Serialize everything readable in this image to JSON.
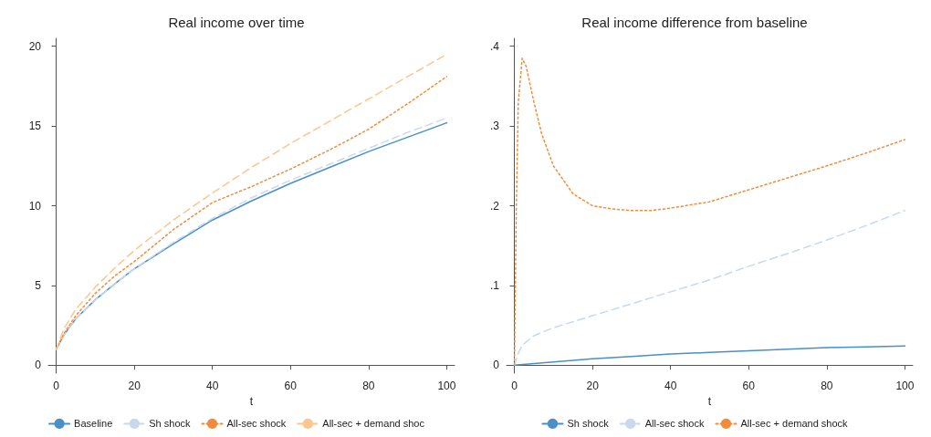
{
  "chart_data": [
    {
      "type": "line",
      "title": "Real income over time",
      "xlabel": "t",
      "xlim": [
        -2,
        102
      ],
      "xticks": [
        0,
        20,
        40,
        60,
        80,
        100
      ],
      "ylim": [
        -0.5,
        20.5
      ],
      "yticks": [
        0,
        5,
        10,
        15,
        20
      ],
      "grid": false,
      "legend": "bottom",
      "marker": "none",
      "series": [
        {
          "name": "Baseline",
          "color": "#4a8fc7",
          "line_style": "solid",
          "x": [
            0,
            2,
            5,
            10,
            15,
            20,
            30,
            40,
            50,
            60,
            70,
            80,
            90,
            100
          ],
          "values": [
            1,
            1.9,
            2.9,
            4.1,
            5.1,
            6.05,
            7.6,
            9.1,
            10.3,
            11.4,
            12.4,
            13.4,
            14.3,
            15.2
          ]
        },
        {
          "name": "Sh shock",
          "color": "#c6d9ef",
          "line_style": "dashed",
          "x": [
            0,
            2,
            5,
            10,
            15,
            20,
            30,
            40,
            50,
            60,
            70,
            80,
            90,
            100
          ],
          "values": [
            1,
            1.9,
            2.9,
            4.1,
            5.1,
            6.05,
            7.7,
            9.2,
            10.5,
            11.6,
            12.6,
            13.6,
            14.6,
            15.5
          ]
        },
        {
          "name": "All-sec shock",
          "color": "#f28c3c",
          "line_style": "dotted",
          "x": [
            0,
            2,
            5,
            10,
            15,
            20,
            30,
            40,
            50,
            60,
            70,
            80,
            90,
            100
          ],
          "values": [
            1,
            2,
            3.1,
            4.5,
            5.6,
            6.5,
            8.5,
            10.2,
            11.2,
            12.3,
            13.5,
            14.8,
            16.4,
            18.1
          ]
        },
        {
          "name": "All-sec + demand shoc",
          "color": "#fdc590",
          "line_style": "dashed",
          "x": [
            0,
            2,
            5,
            10,
            15,
            20,
            30,
            40,
            50,
            60,
            70,
            80,
            90,
            100
          ],
          "values": [
            1,
            2.3,
            3.5,
            4.9,
            6.1,
            7.2,
            9.1,
            10.8,
            12.4,
            13.9,
            15.3,
            16.7,
            18.1,
            19.5
          ]
        }
      ]
    },
    {
      "type": "line",
      "title": "Real income difference from baseline",
      "xlabel": "t",
      "xlim": [
        -2,
        102
      ],
      "xticks": [
        0,
        20,
        40,
        60,
        80,
        100
      ],
      "ylim": [
        -0.01,
        0.41
      ],
      "yticks": [
        0,
        {
          "value": 0.1,
          "label": ".1"
        },
        {
          "value": 0.2,
          "label": ".2"
        },
        {
          "value": 0.3,
          "label": ".3"
        },
        {
          "value": 0.4,
          "label": ".4"
        }
      ],
      "grid": false,
      "legend": "bottom",
      "marker": "none",
      "series": [
        {
          "name": "Sh shock",
          "color": "#4a8fc7",
          "line_style": "solid",
          "x": [
            0,
            10,
            20,
            30,
            40,
            50,
            60,
            70,
            80,
            90,
            100
          ],
          "values": [
            0,
            0.004,
            0.008,
            0.011,
            0.014,
            0.016,
            0.018,
            0.02,
            0.022,
            0.023,
            0.024
          ]
        },
        {
          "name": "All-sec shock",
          "color": "#c6d9ef",
          "line_style": "dashed",
          "x": [
            0,
            1,
            2,
            5,
            10,
            20,
            30,
            40,
            50,
            60,
            70,
            80,
            90,
            100
          ],
          "values": [
            0,
            0.015,
            0.025,
            0.037,
            0.047,
            0.062,
            0.077,
            0.092,
            0.107,
            0.124,
            0.14,
            0.157,
            0.175,
            0.194
          ]
        },
        {
          "name": "All-sec + demand shock",
          "color": "#f28c3c",
          "line_style": "dotted",
          "x": [
            0,
            0.5,
            1,
            2,
            3,
            5,
            7,
            10,
            15,
            20,
            25,
            30,
            35,
            40,
            50,
            60,
            70,
            80,
            90,
            100
          ],
          "values": [
            0,
            0.2,
            0.33,
            0.385,
            0.375,
            0.33,
            0.29,
            0.25,
            0.215,
            0.2,
            0.196,
            0.194,
            0.194,
            0.197,
            0.205,
            0.22,
            0.235,
            0.25,
            0.266,
            0.283
          ]
        }
      ]
    }
  ]
}
